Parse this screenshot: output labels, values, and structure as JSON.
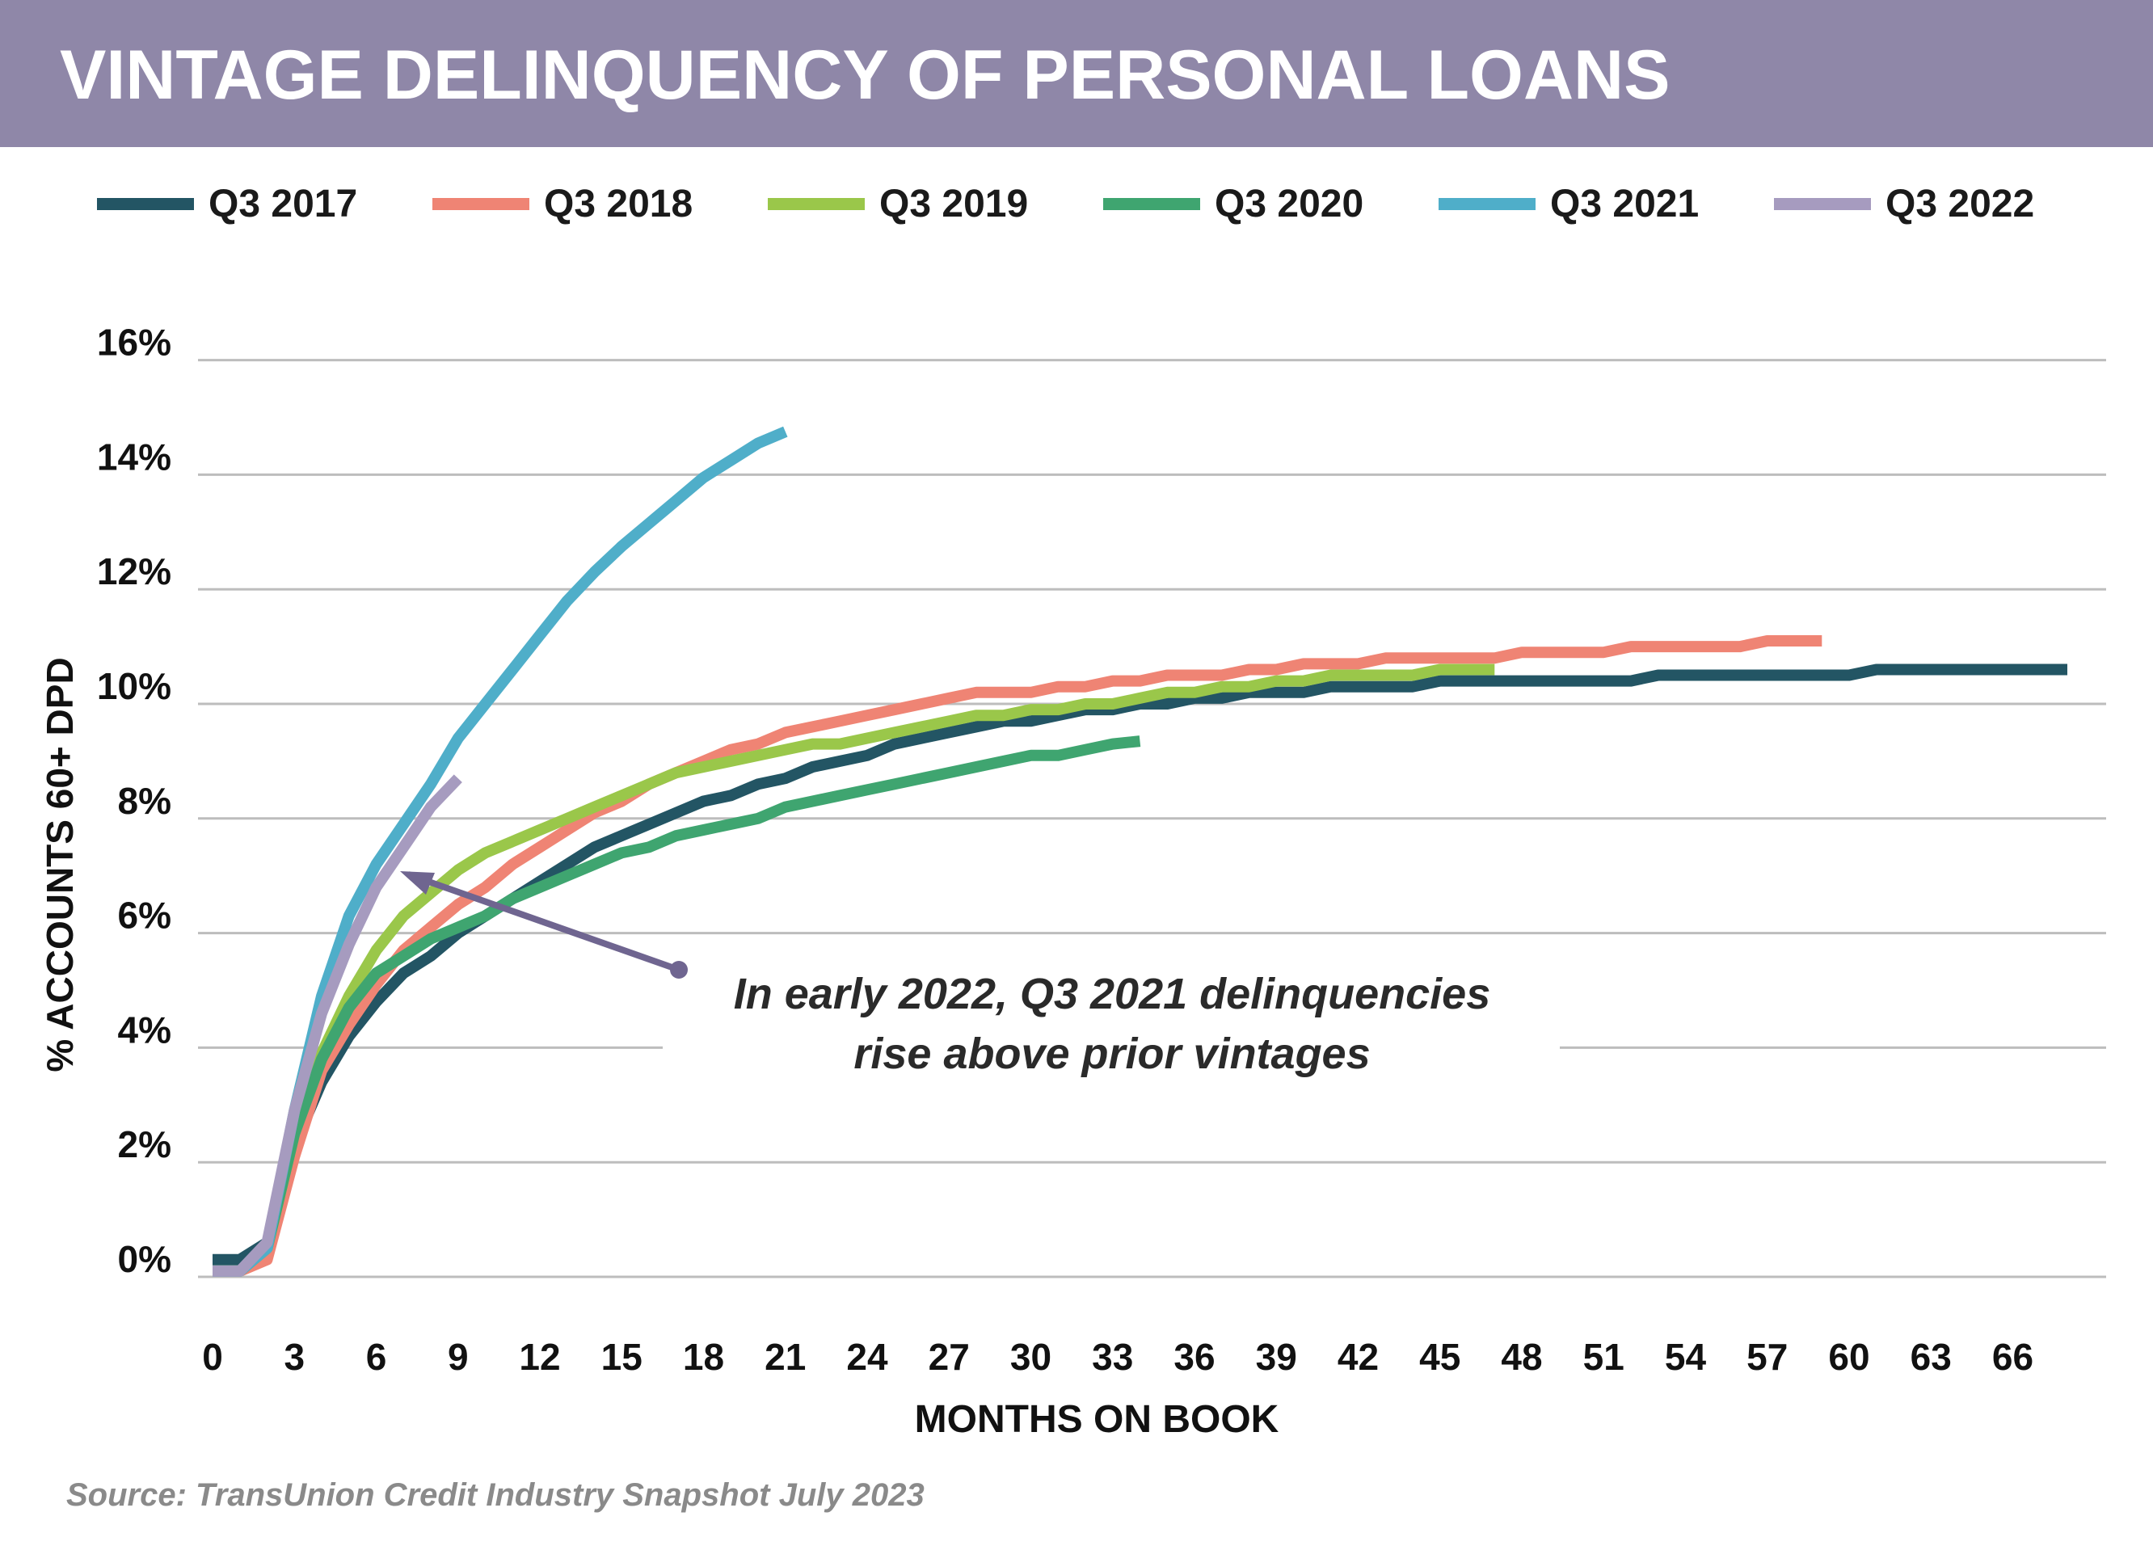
{
  "header": {
    "title": "VINTAGE DELINQUENCY OF PERSONAL LOANS"
  },
  "source_note": "Source: TransUnion Credit Industry Snapshot July 2023",
  "annotation": {
    "line1": "In early 2022, Q3 2021 delinquencies",
    "line2": "rise above prior vintages"
  },
  "chart_data": {
    "type": "line",
    "title": "VINTAGE DELINQUENCY OF PERSONAL LOANS",
    "xlabel": "MONTHS ON BOOK",
    "ylabel": "% ACCOUNTS 60+ DPD",
    "x_ticks": [
      0,
      3,
      6,
      9,
      12,
      15,
      18,
      21,
      24,
      27,
      30,
      33,
      36,
      39,
      42,
      45,
      48,
      51,
      54,
      57,
      60,
      63,
      66
    ],
    "y_ticks": [
      "0%",
      "2%",
      "4%",
      "6%",
      "8%",
      "10%",
      "12%",
      "14%",
      "16%"
    ],
    "xlim": [
      0,
      68
    ],
    "ylim": [
      0,
      16
    ],
    "grid": "horizontal",
    "legend_position": "top",
    "series": [
      {
        "name": "Q3 2017",
        "color": "#235564",
        "points": [
          [
            0,
            0.3
          ],
          [
            1,
            0.3
          ],
          [
            2,
            0.6
          ],
          [
            3,
            2.3
          ],
          [
            4,
            3.4
          ],
          [
            5,
            4.2
          ],
          [
            6,
            4.8
          ],
          [
            7,
            5.3
          ],
          [
            8,
            5.6
          ],
          [
            9,
            6.0
          ],
          [
            10,
            6.3
          ],
          [
            11,
            6.6
          ],
          [
            12,
            6.9
          ],
          [
            13,
            7.2
          ],
          [
            14,
            7.5
          ],
          [
            15,
            7.7
          ],
          [
            16,
            7.9
          ],
          [
            17,
            8.1
          ],
          [
            18,
            8.3
          ],
          [
            19,
            8.4
          ],
          [
            20,
            8.6
          ],
          [
            21,
            8.7
          ],
          [
            22,
            8.9
          ],
          [
            23,
            9.0
          ],
          [
            24,
            9.1
          ],
          [
            25,
            9.3
          ],
          [
            26,
            9.4
          ],
          [
            27,
            9.5
          ],
          [
            28,
            9.6
          ],
          [
            29,
            9.7
          ],
          [
            30,
            9.7
          ],
          [
            31,
            9.8
          ],
          [
            32,
            9.9
          ],
          [
            33,
            9.9
          ],
          [
            34,
            10.0
          ],
          [
            35,
            10.0
          ],
          [
            36,
            10.1
          ],
          [
            37,
            10.1
          ],
          [
            38,
            10.2
          ],
          [
            39,
            10.2
          ],
          [
            40,
            10.2
          ],
          [
            41,
            10.3
          ],
          [
            42,
            10.3
          ],
          [
            43,
            10.3
          ],
          [
            44,
            10.3
          ],
          [
            45,
            10.4
          ],
          [
            46,
            10.4
          ],
          [
            47,
            10.4
          ],
          [
            48,
            10.4
          ],
          [
            49,
            10.4
          ],
          [
            50,
            10.4
          ],
          [
            51,
            10.4
          ],
          [
            52,
            10.4
          ],
          [
            53,
            10.5
          ],
          [
            54,
            10.5
          ],
          [
            55,
            10.5
          ],
          [
            56,
            10.5
          ],
          [
            57,
            10.5
          ],
          [
            58,
            10.5
          ],
          [
            59,
            10.5
          ],
          [
            60,
            10.5
          ],
          [
            61,
            10.6
          ],
          [
            62,
            10.6
          ],
          [
            63,
            10.6
          ],
          [
            64,
            10.6
          ],
          [
            65,
            10.6
          ],
          [
            66,
            10.6
          ],
          [
            67,
            10.6
          ],
          [
            68,
            10.6
          ]
        ]
      },
      {
        "name": "Q3 2018",
        "color": "#ef8474",
        "points": [
          [
            0,
            0.1
          ],
          [
            1,
            0.1
          ],
          [
            2,
            0.3
          ],
          [
            3,
            2.1
          ],
          [
            4,
            3.6
          ],
          [
            5,
            4.4
          ],
          [
            6,
            5.1
          ],
          [
            7,
            5.7
          ],
          [
            8,
            6.1
          ],
          [
            9,
            6.5
          ],
          [
            10,
            6.8
          ],
          [
            11,
            7.2
          ],
          [
            12,
            7.5
          ],
          [
            13,
            7.8
          ],
          [
            14,
            8.1
          ],
          [
            15,
            8.3
          ],
          [
            16,
            8.6
          ],
          [
            17,
            8.8
          ],
          [
            18,
            9.0
          ],
          [
            19,
            9.2
          ],
          [
            20,
            9.3
          ],
          [
            21,
            9.5
          ],
          [
            22,
            9.6
          ],
          [
            23,
            9.7
          ],
          [
            24,
            9.8
          ],
          [
            25,
            9.9
          ],
          [
            26,
            10.0
          ],
          [
            27,
            10.1
          ],
          [
            28,
            10.2
          ],
          [
            29,
            10.2
          ],
          [
            30,
            10.2
          ],
          [
            31,
            10.3
          ],
          [
            32,
            10.3
          ],
          [
            33,
            10.4
          ],
          [
            34,
            10.4
          ],
          [
            35,
            10.5
          ],
          [
            36,
            10.5
          ],
          [
            37,
            10.5
          ],
          [
            38,
            10.6
          ],
          [
            39,
            10.6
          ],
          [
            40,
            10.7
          ],
          [
            41,
            10.7
          ],
          [
            42,
            10.7
          ],
          [
            43,
            10.8
          ],
          [
            44,
            10.8
          ],
          [
            45,
            10.8
          ],
          [
            46,
            10.8
          ],
          [
            47,
            10.8
          ],
          [
            48,
            10.9
          ],
          [
            49,
            10.9
          ],
          [
            50,
            10.9
          ],
          [
            51,
            10.9
          ],
          [
            52,
            11.0
          ],
          [
            53,
            11.0
          ],
          [
            54,
            11.0
          ],
          [
            55,
            11.0
          ],
          [
            56,
            11.0
          ],
          [
            57,
            11.1
          ],
          [
            58,
            11.1
          ],
          [
            59,
            11.1
          ]
        ]
      },
      {
        "name": "Q3 2019",
        "color": "#9ac74a",
        "points": [
          [
            0,
            0.1
          ],
          [
            1,
            0.1
          ],
          [
            2,
            0.5
          ],
          [
            3,
            2.5
          ],
          [
            4,
            3.9
          ],
          [
            5,
            4.9
          ],
          [
            6,
            5.7
          ],
          [
            7,
            6.3
          ],
          [
            8,
            6.7
          ],
          [
            9,
            7.1
          ],
          [
            10,
            7.4
          ],
          [
            11,
            7.6
          ],
          [
            12,
            7.8
          ],
          [
            13,
            8.0
          ],
          [
            14,
            8.2
          ],
          [
            15,
            8.4
          ],
          [
            16,
            8.6
          ],
          [
            17,
            8.8
          ],
          [
            18,
            8.9
          ],
          [
            19,
            9.0
          ],
          [
            20,
            9.1
          ],
          [
            21,
            9.2
          ],
          [
            22,
            9.3
          ],
          [
            23,
            9.3
          ],
          [
            24,
            9.4
          ],
          [
            25,
            9.5
          ],
          [
            26,
            9.6
          ],
          [
            27,
            9.7
          ],
          [
            28,
            9.8
          ],
          [
            29,
            9.8
          ],
          [
            30,
            9.9
          ],
          [
            31,
            9.9
          ],
          [
            32,
            10.0
          ],
          [
            33,
            10.0
          ],
          [
            34,
            10.1
          ],
          [
            35,
            10.2
          ],
          [
            36,
            10.2
          ],
          [
            37,
            10.3
          ],
          [
            38,
            10.3
          ],
          [
            39,
            10.4
          ],
          [
            40,
            10.4
          ],
          [
            41,
            10.5
          ],
          [
            42,
            10.5
          ],
          [
            43,
            10.5
          ],
          [
            44,
            10.5
          ],
          [
            45,
            10.6
          ],
          [
            46,
            10.6
          ],
          [
            47,
            10.6
          ]
        ]
      },
      {
        "name": "Q3 2020",
        "color": "#3fa570",
        "points": [
          [
            0,
            0.1
          ],
          [
            1,
            0.1
          ],
          [
            2,
            0.5
          ],
          [
            3,
            2.5
          ],
          [
            4,
            3.8
          ],
          [
            5,
            4.7
          ],
          [
            6,
            5.3
          ],
          [
            7,
            5.6
          ],
          [
            8,
            5.9
          ],
          [
            9,
            6.1
          ],
          [
            10,
            6.3
          ],
          [
            11,
            6.6
          ],
          [
            12,
            6.8
          ],
          [
            13,
            7.0
          ],
          [
            14,
            7.2
          ],
          [
            15,
            7.4
          ],
          [
            16,
            7.5
          ],
          [
            17,
            7.7
          ],
          [
            18,
            7.8
          ],
          [
            19,
            7.9
          ],
          [
            20,
            8.0
          ],
          [
            21,
            8.2
          ],
          [
            22,
            8.3
          ],
          [
            23,
            8.4
          ],
          [
            24,
            8.5
          ],
          [
            25,
            8.6
          ],
          [
            26,
            8.7
          ],
          [
            27,
            8.8
          ],
          [
            28,
            8.9
          ],
          [
            29,
            9.0
          ],
          [
            30,
            9.1
          ],
          [
            31,
            9.1
          ],
          [
            32,
            9.2
          ],
          [
            33,
            9.3
          ],
          [
            34,
            9.35
          ]
        ]
      },
      {
        "name": "Q3 2021",
        "color": "#4faec9",
        "points": [
          [
            0,
            0.1
          ],
          [
            1,
            0.1
          ],
          [
            2,
            0.5
          ],
          [
            3,
            2.9
          ],
          [
            4,
            4.9
          ],
          [
            5,
            6.3
          ],
          [
            6,
            7.2
          ],
          [
            7,
            7.9
          ],
          [
            8,
            8.6
          ],
          [
            9,
            9.4
          ],
          [
            10,
            10.0
          ],
          [
            11,
            10.6
          ],
          [
            12,
            11.2
          ],
          [
            13,
            11.8
          ],
          [
            14,
            12.3
          ],
          [
            15,
            12.75
          ],
          [
            16,
            13.15
          ],
          [
            17,
            13.55
          ],
          [
            18,
            13.95
          ],
          [
            19,
            14.25
          ],
          [
            20,
            14.55
          ],
          [
            21,
            14.75
          ]
        ]
      },
      {
        "name": "Q3 2022",
        "color": "#a69bbf",
        "points": [
          [
            0,
            0.1
          ],
          [
            1,
            0.1
          ],
          [
            2,
            0.6
          ],
          [
            3,
            2.9
          ],
          [
            4,
            4.6
          ],
          [
            5,
            5.8
          ],
          [
            6,
            6.8
          ],
          [
            7,
            7.5
          ],
          [
            8,
            8.2
          ],
          [
            9,
            8.7
          ]
        ]
      }
    ]
  }
}
